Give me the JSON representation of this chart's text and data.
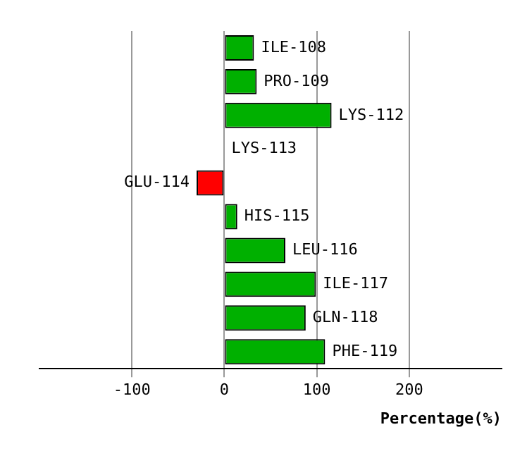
{
  "chart_data": {
    "type": "bar",
    "orientation": "horizontal",
    "xlabel": "Percentage(%)",
    "categories": [
      "ILE-108",
      "PRO-109",
      "LYS-112",
      "LYS-113",
      "GLU-114",
      "HIS-115",
      "LEU-116",
      "ILE-117",
      "GLN-118",
      "PHE-119"
    ],
    "values": [
      32,
      35,
      116,
      0,
      -30,
      14,
      66,
      99,
      88,
      109
    ],
    "colors": [
      "#00b000",
      "#00b000",
      "#00b000",
      "#00b000",
      "#ff0000",
      "#00b000",
      "#00b000",
      "#00b000",
      "#00b000",
      "#00b000"
    ],
    "xlim": [
      -200,
      300
    ],
    "xticks": [
      -100,
      0,
      100,
      200
    ],
    "grid": "x",
    "tick_labels": "x",
    "legend": false
  }
}
